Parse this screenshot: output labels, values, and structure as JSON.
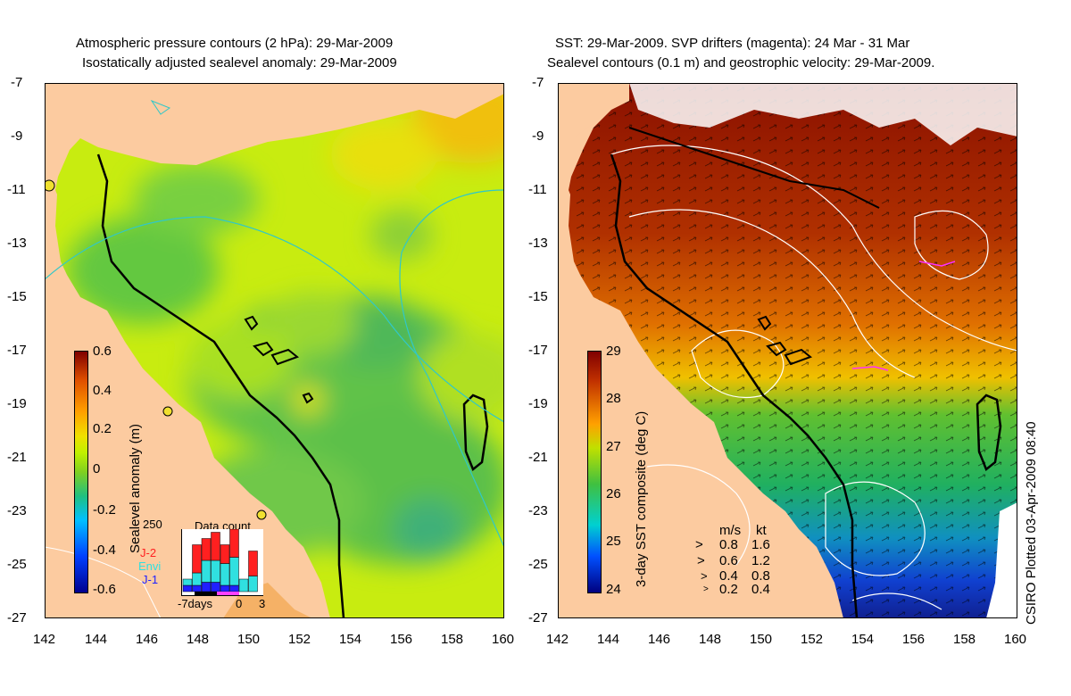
{
  "left_panel": {
    "title_line1": "Atmospheric pressure contours (2 hPa): 29-Mar-2009",
    "title_line2": "Isostatically adjusted sealevel anomaly: 29-Mar-2009",
    "y_ticks": [
      "-7",
      "-9",
      "-11",
      "-13",
      "-15",
      "-17",
      "-19",
      "-21",
      "-23",
      "-25",
      "-27"
    ],
    "x_ticks": [
      "142",
      "144",
      "146",
      "148",
      "150",
      "152",
      "154",
      "156",
      "158",
      "160"
    ],
    "colorbar": {
      "label": "Sealevel anomaly (m)",
      "ticks": [
        "0.6",
        "0.4",
        "0.2",
        "0",
        "-0.2",
        "-0.4",
        "-0.6"
      ],
      "range": [
        -0.6,
        0.6
      ]
    },
    "data_count": {
      "title": "Data count",
      "ymax_label": "250",
      "x_labels": [
        "-7days",
        "0",
        "3"
      ],
      "legend": [
        {
          "label": "J-2",
          "color": "#ff2020"
        },
        {
          "label": "Envi",
          "color": "#30e0e0"
        },
        {
          "label": "J-1",
          "color": "#2020ff"
        }
      ],
      "bars": [
        {
          "j1": 0.1,
          "envi": 0.1,
          "j2": 0.0
        },
        {
          "j1": 0.1,
          "envi": 0.2,
          "j2": 0.45
        },
        {
          "j1": 0.15,
          "envi": 0.35,
          "j2": 0.35
        },
        {
          "j1": 0.15,
          "envi": 0.35,
          "j2": 0.45
        },
        {
          "j1": 0.1,
          "envi": 0.35,
          "j2": 0.3
        },
        {
          "j1": 0.1,
          "envi": 0.45,
          "j2": 0.45
        },
        {
          "j1": 0.0,
          "envi": 0.2,
          "j2": 0.0
        },
        {
          "j1": 0.0,
          "envi": 0.25,
          "j2": 0.4
        }
      ]
    }
  },
  "right_panel": {
    "title_line1": "SST: 29-Mar-2009. SVP drifters (magenta): 24 Mar - 31 Mar",
    "title_line2": "Sealevel contours (0.1 m) and geostrophic velocity: 29-Mar-2009.",
    "y_ticks": [
      "-7",
      "-9",
      "-11",
      "-13",
      "-15",
      "-17",
      "-19",
      "-21",
      "-23",
      "-25",
      "-27"
    ],
    "x_ticks": [
      "142",
      "144",
      "146",
      "148",
      "150",
      "152",
      "154",
      "156",
      "158",
      "160"
    ],
    "colorbar": {
      "label": "3-day SST composite (deg C)",
      "ticks": [
        "29",
        "28",
        "27",
        "26",
        "25",
        "24"
      ],
      "range": [
        24,
        29
      ]
    },
    "velocity_legend": {
      "header_ms": "m/s",
      "header_kt": "kt",
      "rows": [
        {
          "ms": "0.8",
          "kt": "1.6"
        },
        {
          "ms": "0.6",
          "kt": "1.2"
        },
        {
          "ms": "0.4",
          "kt": "0.8"
        },
        {
          "ms": "0.2",
          "kt": "0.4"
        }
      ]
    }
  },
  "footer": {
    "plotted_label": "CSIRO Plotted 03-Apr-2009 08:40"
  },
  "colors": {
    "land": "#fccba0",
    "sla_scale": [
      "#00008f",
      "#0040ff",
      "#00c0ff",
      "#20c080",
      "#40b040",
      "#80d020",
      "#c0f000",
      "#f0e000",
      "#ffa000",
      "#e05000",
      "#800000"
    ],
    "sst_scale": [
      "#00007f",
      "#0050ff",
      "#00d0d0",
      "#40c040",
      "#c0e000",
      "#ffa000",
      "#d04000",
      "#800000"
    ]
  }
}
